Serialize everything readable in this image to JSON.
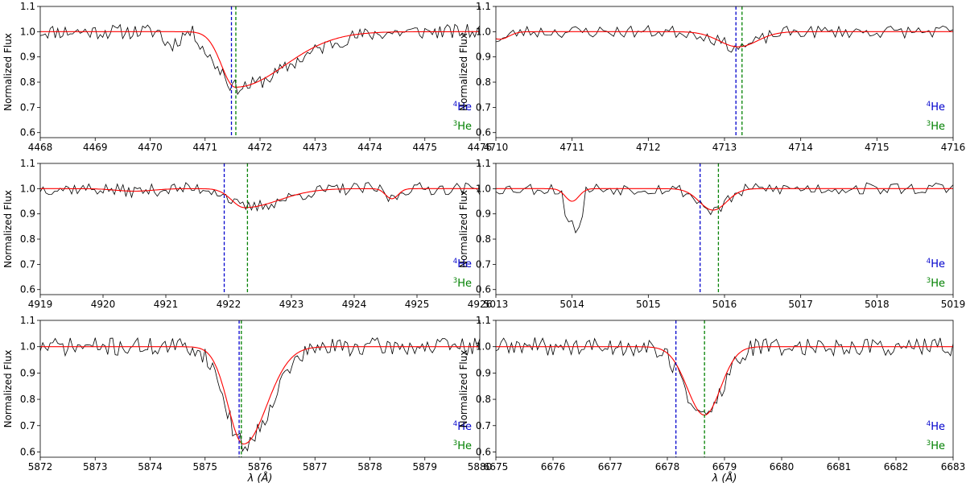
{
  "figure": {
    "ylabel": "Normalized Flux",
    "xlabel": "λ (Å)",
    "legend": [
      {
        "sup": "4",
        "text": "He",
        "color": "#0000cc"
      },
      {
        "sup": "3",
        "text": "He",
        "color": "#008000"
      }
    ],
    "colors": {
      "observed": "#000000",
      "model": "#ff0000",
      "he4_line": "#0000cc",
      "he3_line": "#008000"
    }
  },
  "chart_data": [
    {
      "type": "line",
      "xlim": [
        4468,
        4476
      ],
      "ylim": [
        0.58,
        1.1
      ],
      "xticks": [
        4468,
        4469,
        4470,
        4471,
        4472,
        4473,
        4474,
        4475,
        4476
      ],
      "yticks": [
        0.6,
        0.7,
        0.8,
        0.9,
        1.0,
        1.1
      ],
      "he4_line": 4471.48,
      "he3_line": 4471.56,
      "model": {
        "center": 4471.55,
        "depth": 0.22,
        "wl": 0.25,
        "wr": 0.9,
        "wings": [],
        "smooth": 0.35
      },
      "noise": 0.03,
      "seed": 11,
      "observed_wavy": [
        [
          4470.2,
          4471.3,
          0.05
        ]
      ]
    },
    {
      "type": "line",
      "xlim": [
        4710,
        4716
      ],
      "ylim": [
        0.58,
        1.1
      ],
      "xticks": [
        4710,
        4711,
        4712,
        4713,
        4714,
        4715,
        4716
      ],
      "yticks": [
        0.6,
        0.7,
        0.8,
        0.9,
        1.0,
        1.1
      ],
      "he4_line": 4713.15,
      "he3_line": 4713.23,
      "model": {
        "center": 4713.18,
        "depth": 0.06,
        "wl": 0.25,
        "wr": 0.25,
        "wings": [
          [
            4710.05,
            0.03,
            0.12
          ]
        ],
        "smooth": 0.25
      },
      "noise": 0.025,
      "seed": 23,
      "observed_wavy": []
    },
    {
      "type": "line",
      "xlim": [
        4919,
        4926
      ],
      "ylim": [
        0.58,
        1.1
      ],
      "xticks": [
        4919,
        4920,
        4921,
        4922,
        4923,
        4924,
        4925,
        4926
      ],
      "yticks": [
        0.6,
        0.7,
        0.8,
        0.9,
        1.0,
        1.1
      ],
      "he4_line": 4921.93,
      "he3_line": 4922.3,
      "model": {
        "center": 4922.25,
        "depth": 0.075,
        "wl": 0.2,
        "wr": 0.55,
        "wings": [
          [
            4924.6,
            0.04,
            0.1
          ],
          [
            4920.5,
            0.01,
            0.3
          ]
        ],
        "smooth": 0.25
      },
      "noise": 0.025,
      "seed": 37,
      "observed_wavy": []
    },
    {
      "type": "line",
      "xlim": [
        5013,
        5019
      ],
      "ylim": [
        0.58,
        1.1
      ],
      "xticks": [
        5013,
        5014,
        5015,
        5016,
        5017,
        5018,
        5019
      ],
      "yticks": [
        0.6,
        0.7,
        0.8,
        0.9,
        1.0,
        1.1
      ],
      "he4_line": 5015.68,
      "he3_line": 5015.92,
      "model": {
        "center": 5015.85,
        "depth": 0.085,
        "wl": 0.18,
        "wr": 0.18,
        "wings": [
          [
            5014.0,
            0.05,
            0.09
          ]
        ],
        "smooth": 0.2
      },
      "noise": 0.025,
      "seed": 53,
      "observed_wavy": [
        [
          5013.9,
          5014.15,
          -0.11
        ]
      ]
    },
    {
      "type": "line",
      "xlim": [
        5872,
        5880
      ],
      "ylim": [
        0.58,
        1.1
      ],
      "xticks": [
        5872,
        5873,
        5874,
        5875,
        5876,
        5877,
        5878,
        5879,
        5880
      ],
      "yticks": [
        0.6,
        0.7,
        0.8,
        0.9,
        1.0,
        1.1
      ],
      "he4_line": 5875.62,
      "he3_line": 5875.66,
      "model": {
        "center": 5875.7,
        "depth": 0.37,
        "wl": 0.28,
        "wr": 0.42,
        "wings": [],
        "smooth": 0.5
      },
      "noise": 0.035,
      "seed": 71,
      "observed_wavy": []
    },
    {
      "type": "line",
      "xlim": [
        6675,
        6683
      ],
      "ylim": [
        0.58,
        1.1
      ],
      "xticks": [
        6675,
        6676,
        6677,
        6678,
        6679,
        6680,
        6681,
        6682,
        6683
      ],
      "yticks": [
        0.6,
        0.7,
        0.8,
        0.9,
        1.0,
        1.1
      ],
      "he4_line": 6678.15,
      "he3_line": 6678.65,
      "model": {
        "center": 6678.65,
        "depth": 0.26,
        "wl": 0.3,
        "wr": 0.28,
        "wings": [],
        "smooth": 0.45
      },
      "noise": 0.035,
      "seed": 89,
      "observed_wavy": []
    }
  ]
}
